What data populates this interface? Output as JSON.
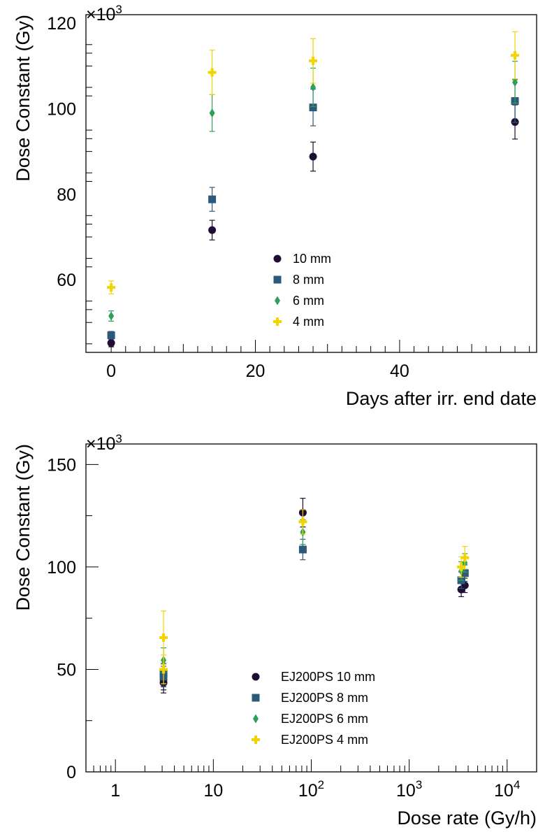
{
  "chart_data": [
    {
      "type": "scatter",
      "title": "",
      "xlabel": "Days after irr. end date",
      "ylabel": "Dose Constant (Gy)",
      "y_multiplier": "×10",
      "y_multiplier_exp": "3",
      "xlim": [
        -3.5,
        59
      ],
      "ylim": [
        43,
        122
      ],
      "x_scale": "linear",
      "x_ticks": [
        0,
        20,
        40
      ],
      "x_tick_labels": [
        "0",
        "20",
        "40"
      ],
      "y_ticks": [
        60,
        80,
        100,
        120
      ],
      "y_tick_labels": [
        "60",
        "80",
        "100",
        "120"
      ],
      "grid": false,
      "legend_position": "center",
      "series": [
        {
          "name": "10 mm",
          "marker": "circle",
          "color": "#1f0d33",
          "x": [
            0,
            14,
            28,
            56
          ],
          "y": [
            45.2,
            71.6,
            88.8,
            96.9
          ],
          "err": [
            0.9,
            2.3,
            3.4,
            4.0
          ]
        },
        {
          "name": "8 mm",
          "marker": "square",
          "color": "#2e5a7a",
          "x": [
            0,
            14,
            28,
            56
          ],
          "y": [
            47.0,
            78.8,
            100.3,
            101.8
          ],
          "err": [
            0.9,
            2.8,
            4.3,
            5.0
          ]
        },
        {
          "name": "6 mm",
          "marker": "diamond",
          "color": "#2ea05a",
          "x": [
            0,
            14,
            28,
            56
          ],
          "y": [
            51.5,
            99.0,
            105.0,
            106.2
          ],
          "err": [
            1.2,
            4.3,
            4.5,
            4.9
          ]
        },
        {
          "name": "4 mm",
          "marker": "cross",
          "color": "#f2d500",
          "x": [
            0,
            14,
            28,
            56
          ],
          "y": [
            58.2,
            108.5,
            111.2,
            112.5
          ],
          "err": [
            1.5,
            5.2,
            5.2,
            5.5
          ]
        }
      ]
    },
    {
      "type": "scatter",
      "title": "",
      "xlabel": "Dose rate (Gy/h)",
      "ylabel": "Dose Constant (Gy)",
      "y_multiplier": "×10",
      "y_multiplier_exp": "3",
      "xlim": [
        0.5,
        20000
      ],
      "ylim": [
        0,
        160
      ],
      "x_scale": "log",
      "x_ticks": [
        1,
        10,
        100,
        1000,
        10000
      ],
      "x_tick_labels": [
        {
          "base": "1",
          "exp": ""
        },
        {
          "base": "10",
          "exp": ""
        },
        {
          "base": "10",
          "exp": "2"
        },
        {
          "base": "10",
          "exp": "3"
        },
        {
          "base": "10",
          "exp": "4"
        }
      ],
      "y_ticks": [
        0,
        50,
        100,
        150
      ],
      "y_tick_labels": [
        "0",
        "50",
        "100",
        "150"
      ],
      "grid": false,
      "legend_position": "bottom-center",
      "series": [
        {
          "name": "EJ200PS 10 mm",
          "marker": "circle",
          "color": "#1f0d33",
          "x": [
            3.1,
            3.1,
            3.1,
            82,
            3400,
            3700
          ],
          "y": [
            43.5,
            45.0,
            47.0,
            126.5,
            89.0,
            91.0
          ],
          "err": [
            5.0,
            5.0,
            5.5,
            7.0,
            3.5,
            3.5
          ]
        },
        {
          "name": "EJ200PS 8 mm",
          "marker": "square",
          "color": "#2e5a7a",
          "x": [
            3.1,
            3.1,
            82,
            3400,
            3700
          ],
          "y": [
            46.5,
            48.0,
            108.5,
            93.5,
            97.0
          ],
          "err": [
            5.0,
            5.0,
            5.0,
            4.0,
            4.0
          ]
        },
        {
          "name": "EJ200PS 6 mm",
          "marker": "diamond",
          "color": "#2ea05a",
          "x": [
            3.1,
            82,
            3400,
            3700
          ],
          "y": [
            54.5,
            117.0,
            98.0,
            102.0
          ],
          "err": [
            6.0,
            6.0,
            4.5,
            4.5
          ]
        },
        {
          "name": "EJ200PS 4 mm",
          "marker": "cross",
          "color": "#f2d500",
          "x": [
            3.1,
            3.1,
            82,
            3400,
            3700
          ],
          "y": [
            65.5,
            50.0,
            122.0,
            100.0,
            104.5
          ],
          "err": [
            13.0,
            7.0,
            6.0,
            5.0,
            5.5
          ]
        }
      ]
    }
  ]
}
